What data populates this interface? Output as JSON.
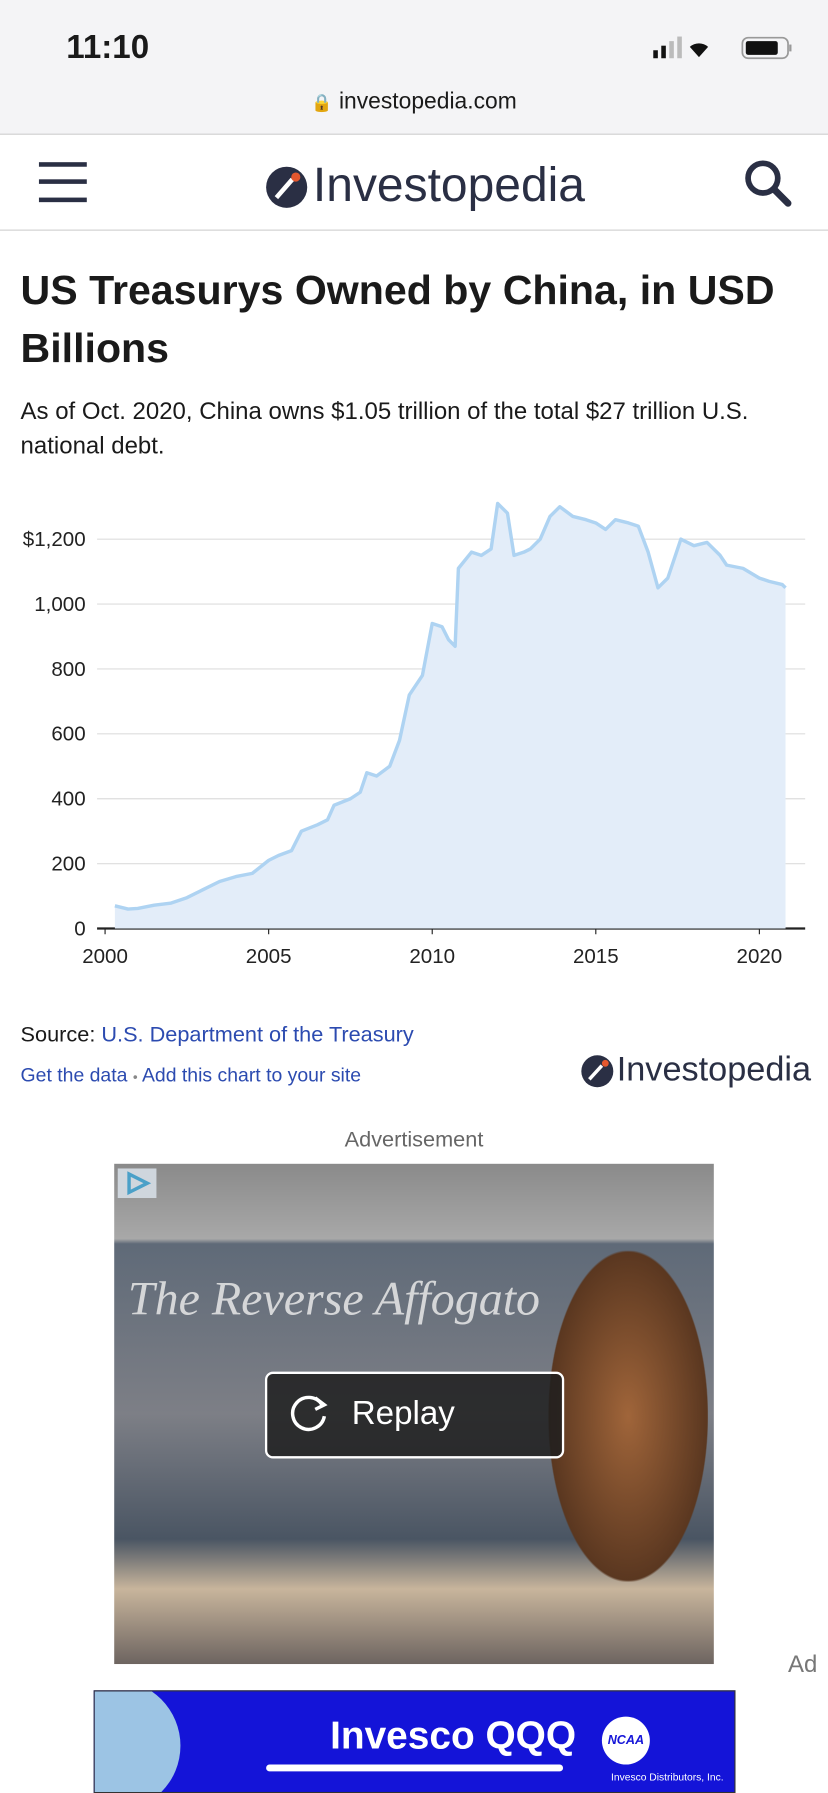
{
  "status": {
    "time": "11:10",
    "url": "investopedia.com"
  },
  "header": {
    "logo": "Investopedia"
  },
  "article": {
    "title": "US Treasurys Owned by China, in USD Billions",
    "subtitle": "As of Oct. 2020, China owns $1.05 trillion of the total $27 trillion U.S. national debt."
  },
  "chart_data": {
    "type": "area",
    "color": "#aed3f2",
    "fill": "#e3edf9",
    "grid": true,
    "x": [
      2000.3,
      2000.7,
      2001.0,
      2001.5,
      2002.0,
      2002.5,
      2003.0,
      2003.5,
      2004.0,
      2004.5,
      2005.0,
      2005.3,
      2005.7,
      2006.0,
      2006.5,
      2006.8,
      2007.0,
      2007.5,
      2007.8,
      2008.0,
      2008.3,
      2008.7,
      2009.0,
      2009.3,
      2009.7,
      2010.0,
      2010.3,
      2010.5,
      2010.7,
      2010.8,
      2011.2,
      2011.5,
      2011.8,
      2012.0,
      2012.3,
      2012.5,
      2012.8,
      2013.0,
      2013.3,
      2013.6,
      2013.9,
      2014.3,
      2014.7,
      2015.0,
      2015.3,
      2015.6,
      2016.0,
      2016.3,
      2016.6,
      2016.9,
      2017.2,
      2017.6,
      2018.0,
      2018.4,
      2018.8,
      2019.0,
      2019.5,
      2020.0,
      2020.3,
      2020.7,
      2020.8
    ],
    "y": [
      70,
      60,
      62,
      72,
      78,
      95,
      120,
      145,
      160,
      170,
      210,
      225,
      240,
      300,
      320,
      335,
      380,
      400,
      420,
      480,
      470,
      500,
      580,
      720,
      780,
      940,
      930,
      890,
      870,
      1110,
      1160,
      1150,
      1170,
      1310,
      1280,
      1150,
      1160,
      1170,
      1200,
      1270,
      1300,
      1270,
      1260,
      1250,
      1230,
      1260,
      1250,
      1240,
      1160,
      1050,
      1080,
      1200,
      1180,
      1190,
      1150,
      1120,
      1110,
      1080,
      1070,
      1060,
      1050
    ],
    "xlim": [
      2000,
      2021.4
    ],
    "ylim": [
      0,
      1320
    ],
    "xticks": [
      2000,
      2005,
      2010,
      2015,
      2020
    ],
    "yticks": [
      0,
      200,
      400,
      600,
      800,
      {
        "value": 1000,
        "label": "1,000"
      },
      {
        "value": 1200,
        "label": "$1,200"
      }
    ]
  },
  "source": {
    "label": "Source:",
    "link": "U.S. Department of the Treasury",
    "get_data": "Get the data",
    "separator": "•",
    "add_chart": "Add this chart to your site",
    "logo": "Investopedia"
  },
  "ad": {
    "label": "Advertisement",
    "headline": "The Reverse Affogato",
    "button": "Replay",
    "ad_mark": "Ad",
    "banner": "Invesco QQQ",
    "badge": "NCAA",
    "disclaimer": "Invesco Distributors, Inc."
  }
}
